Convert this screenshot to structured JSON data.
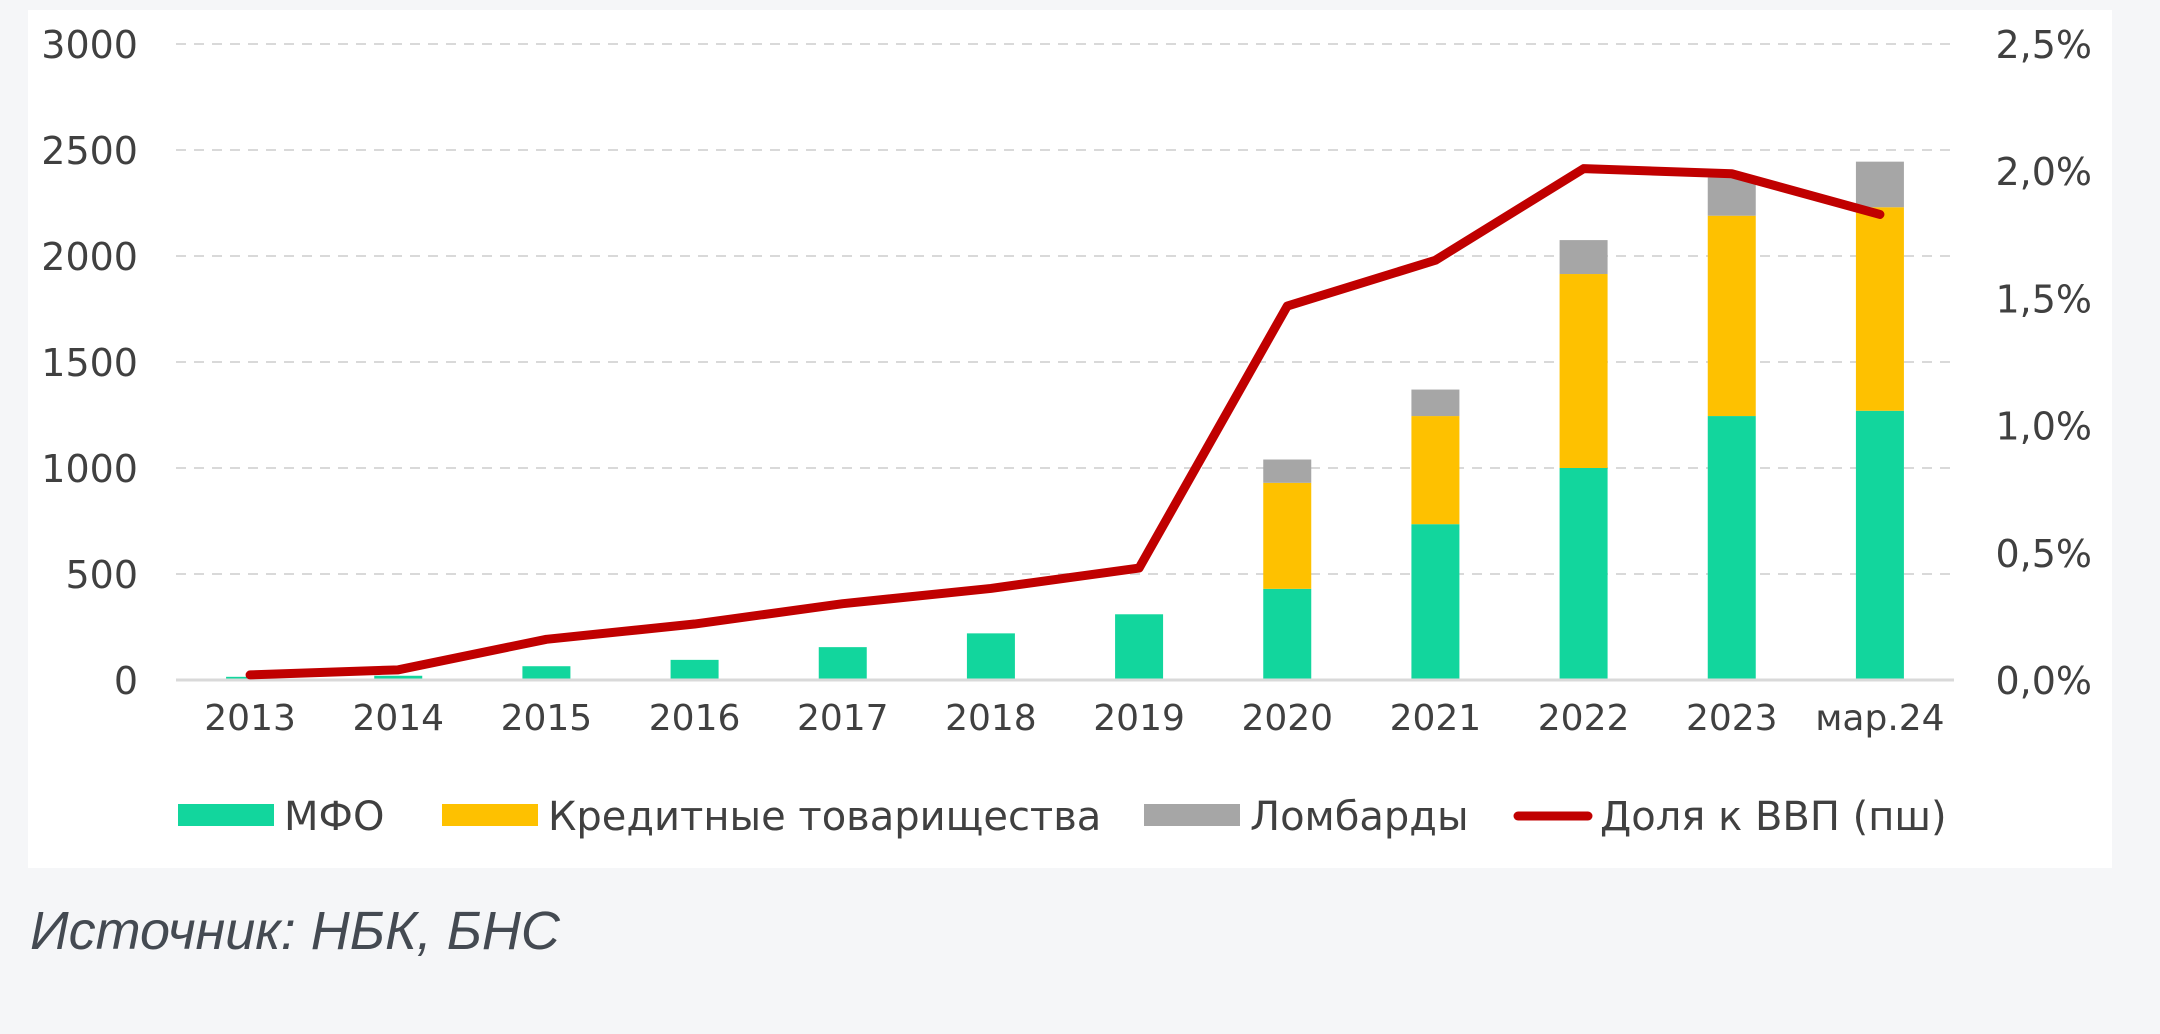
{
  "source": "Источник: НБК, БНС",
  "colors": {
    "mfo": "#12d69d",
    "credit_partnerships": "#fec100",
    "pawnshops": "#a6a6a6",
    "gdp_share": "#c00000",
    "grid": "#d9d9d9",
    "axis_text": "#404040"
  },
  "chart_data": {
    "type": "bar",
    "stacked": true,
    "categories": [
      "2013",
      "2014",
      "2015",
      "2016",
      "2017",
      "2018",
      "2019",
      "2020",
      "2021",
      "2022",
      "2023",
      "мар.24"
    ],
    "series": [
      {
        "name": "МФО",
        "values": [
          15,
          20,
          65,
          95,
          155,
          220,
          310,
          430,
          735,
          1000,
          1245,
          1270
        ]
      },
      {
        "name": "Кредитные товарищества",
        "values": [
          0,
          0,
          0,
          0,
          0,
          0,
          0,
          500,
          510,
          915,
          945,
          960
        ]
      },
      {
        "name": "Ломбарды",
        "values": [
          0,
          0,
          0,
          0,
          0,
          0,
          0,
          110,
          125,
          160,
          180,
          215
        ]
      }
    ],
    "line_series": {
      "name": "Доля к ВВП (пш)",
      "axis": "secondary",
      "values": [
        0.02,
        0.04,
        0.16,
        0.22,
        0.3,
        0.36,
        0.44,
        1.47,
        1.65,
        2.01,
        1.99,
        1.83
      ]
    },
    "ylim": [
      0,
      3000
    ],
    "yticks": [
      "0",
      "500",
      "1000",
      "1500",
      "2000",
      "2500",
      "3000"
    ],
    "y2lim": [
      0,
      2.5
    ],
    "y2ticks": [
      "0,0%",
      "0,5%",
      "1,0%",
      "1,5%",
      "2,0%",
      "2,5%"
    ],
    "grid": true,
    "legend_position": "bottom"
  }
}
